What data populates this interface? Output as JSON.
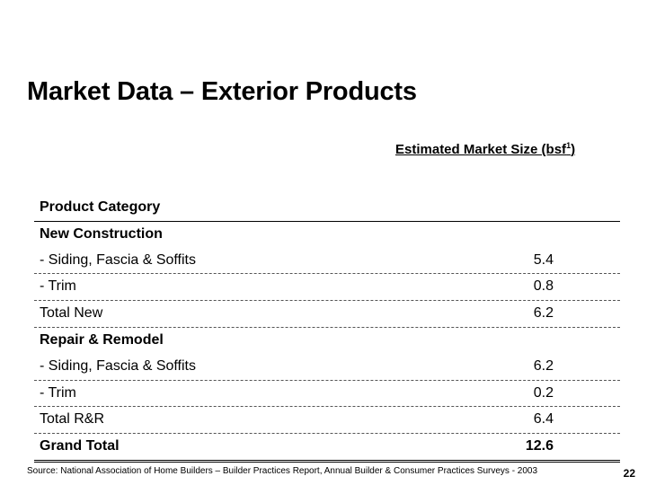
{
  "title": "Market Data – Exterior Products",
  "column_header": {
    "text": "Estimated Market Size (bsf",
    "superscript": "1",
    "suffix": ")"
  },
  "rows": [
    {
      "label": "Product Category",
      "value": "",
      "bold": true
    },
    {
      "label": "New Construction",
      "value": "",
      "bold": true
    },
    {
      "label": "- Siding, Fascia & Soffits",
      "value": "5.4",
      "bold": false
    },
    {
      "label": "- Trim",
      "value": "0.8",
      "bold": false
    },
    {
      "label": "Total New",
      "value": "6.2",
      "bold": false
    },
    {
      "label": "Repair & Remodel",
      "value": "",
      "bold": true
    },
    {
      "label": "- Siding, Fascia & Soffits",
      "value": "6.2",
      "bold": false
    },
    {
      "label": "- Trim",
      "value": "0.2",
      "bold": false
    },
    {
      "label": "Total R&R",
      "value": "6.4",
      "bold": false
    },
    {
      "label": "Grand Total",
      "value": "12.6",
      "bold": true
    }
  ],
  "source": "Source: National Association of Home Builders – Builder Practices Report, Annual Builder & Consumer Practices Surveys - 2003",
  "page_number": "22"
}
